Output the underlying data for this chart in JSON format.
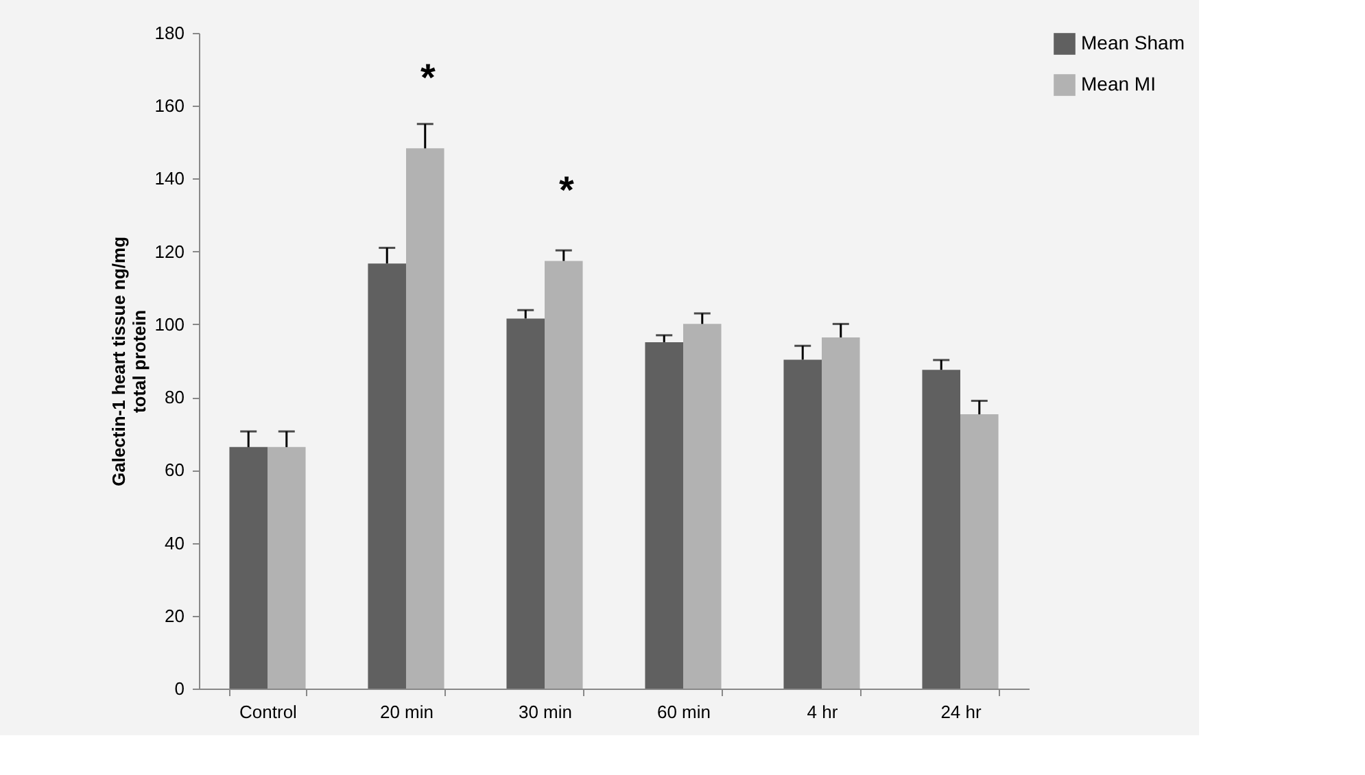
{
  "chart_data": {
    "type": "bar",
    "ylabel": "Galectin-1 heart tissue ng/mg total protein",
    "categories": [
      "Control",
      "20 min",
      "30 min",
      "60 min",
      "4 hr",
      "24 hr"
    ],
    "series": [
      {
        "name": "Mean Sham",
        "color": "#606060",
        "values": [
          66.3,
          116.7,
          101.6,
          95.1,
          90.3,
          87.5
        ],
        "errors": [
          [
            66.3,
            70.6
          ],
          [
            116.7,
            121
          ],
          [
            101.6,
            103.9
          ],
          [
            95.1,
            97
          ],
          [
            90.3,
            94.1
          ],
          [
            87.5,
            90.2
          ]
        ]
      },
      {
        "name": "Mean MI",
        "color": "#b2b2b2",
        "values": [
          66.3,
          148.3,
          117.4,
          100.1,
          96.4,
          75.3
        ],
        "errors": [
          [
            66.3,
            70.6
          ],
          [
            148.3,
            155
          ],
          [
            117.4,
            120.3
          ],
          [
            100.1,
            103
          ],
          [
            96.4,
            100.1
          ],
          [
            75.3,
            79
          ]
        ]
      }
    ],
    "ylim": [
      0,
      180
    ],
    "yticks": [
      0,
      20,
      40,
      60,
      80,
      100,
      120,
      140,
      160,
      180
    ],
    "grid": false,
    "legend": "right",
    "annotations": [
      {
        "text": "*",
        "x": "20 min",
        "y": 148.3
      },
      {
        "text": "*",
        "x": "30 min",
        "y": 117.4
      }
    ]
  }
}
